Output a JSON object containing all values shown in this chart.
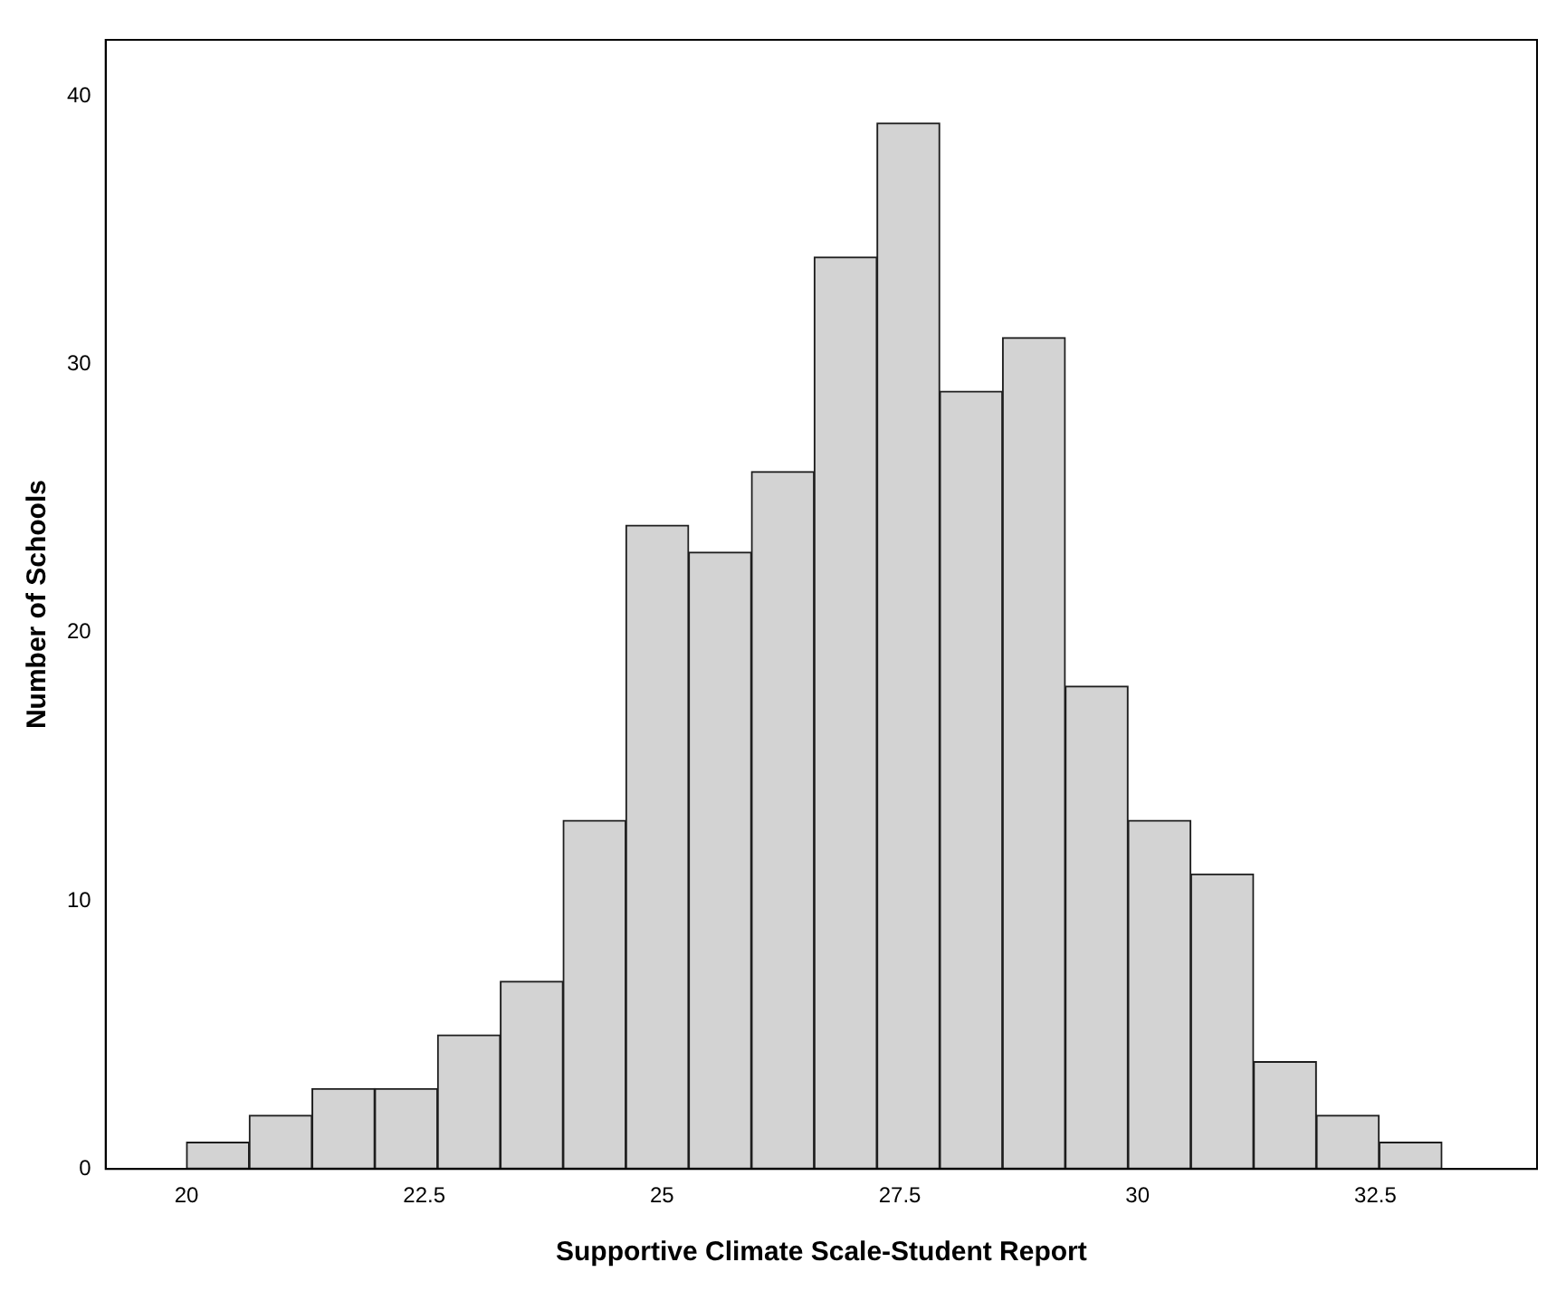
{
  "chart_data": {
    "type": "histogram",
    "xlabel": "Supportive Climate Scale-Student Report",
    "ylabel": "Number of Schools",
    "bins": [
      20,
      20.66,
      21.32,
      21.98,
      22.64,
      23.3,
      23.96,
      24.62,
      25.28,
      25.94,
      26.6,
      27.26,
      27.92,
      28.58,
      29.24,
      29.9,
      30.56,
      31.22,
      31.88,
      32.54,
      33.2
    ],
    "values": [
      1,
      2,
      3,
      3,
      5,
      7,
      13,
      24,
      23,
      26,
      34,
      39,
      29,
      31,
      18,
      13,
      11,
      4,
      2,
      1
    ],
    "color": "#d3d3d3",
    "xlim": [
      19.15,
      34.2
    ],
    "xticks": [
      20,
      22.5,
      25,
      27.5,
      30,
      32.5
    ],
    "ylim": [
      0,
      42.1
    ],
    "yticks": [
      0,
      10,
      20,
      30,
      40
    ],
    "grid": false,
    "legend": false
  }
}
